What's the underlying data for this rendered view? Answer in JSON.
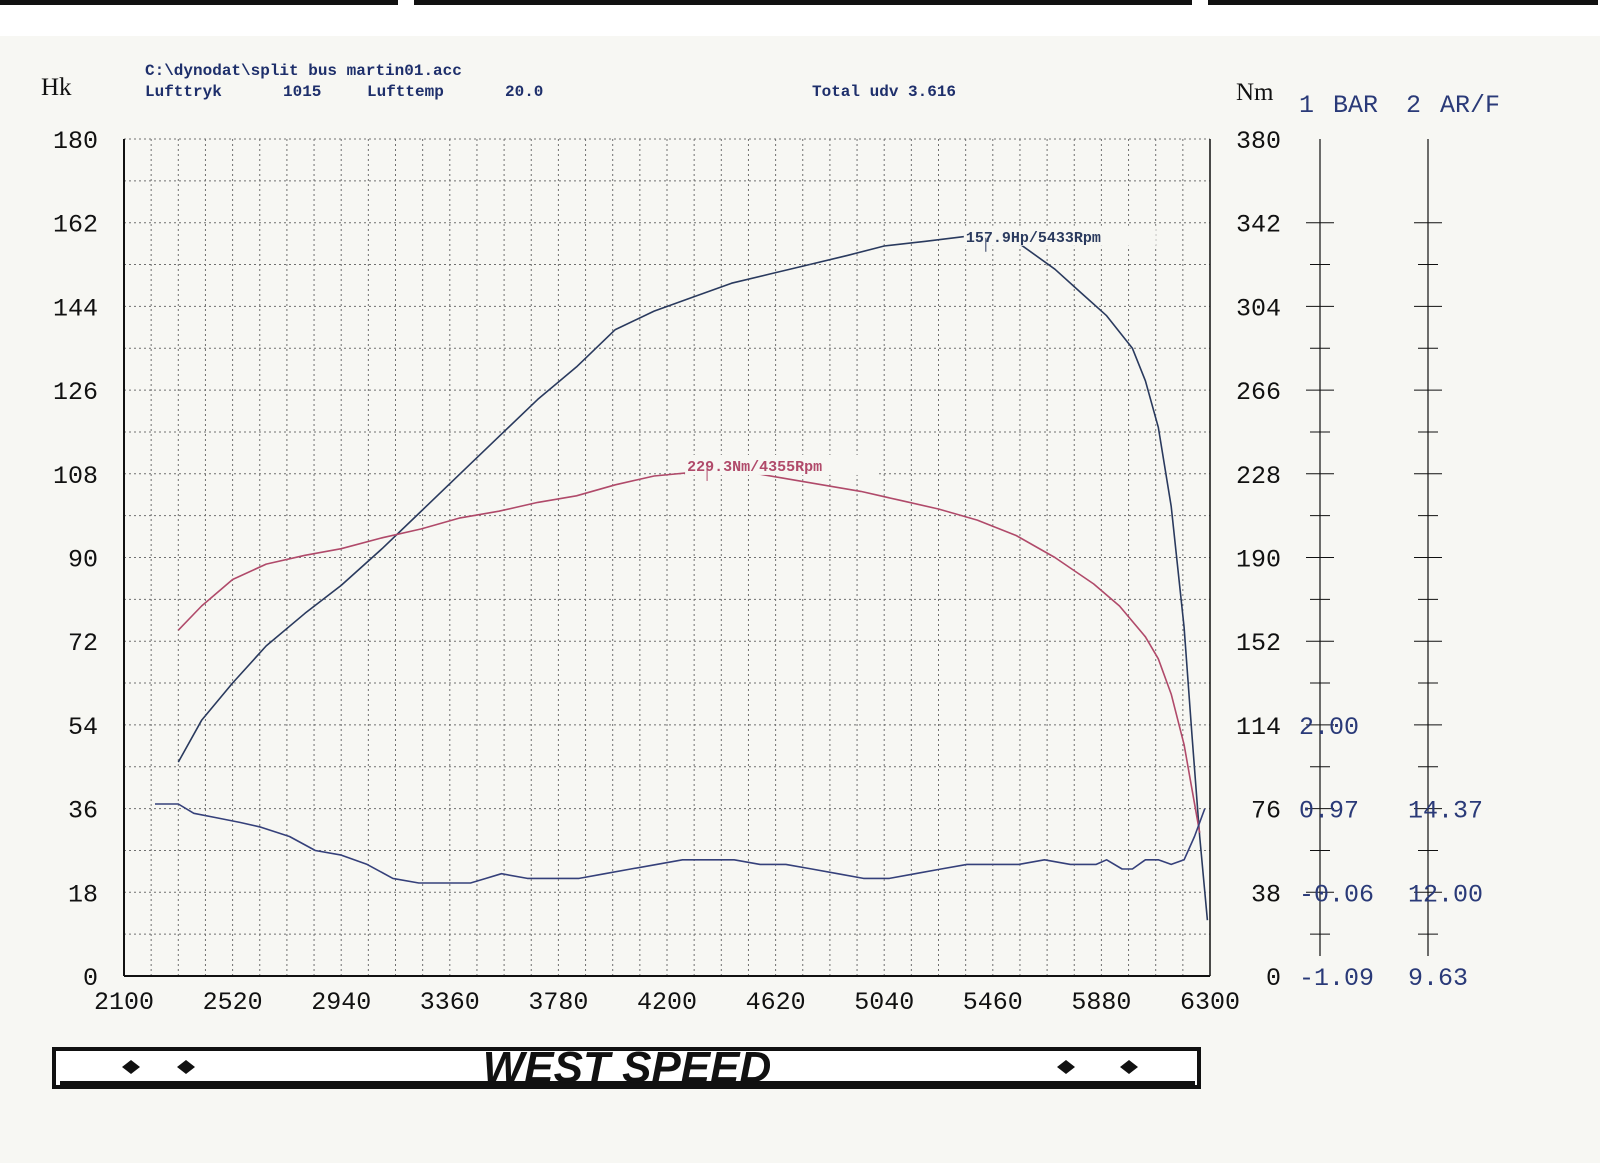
{
  "header": {
    "file_path": "C:\\dynodat\\split bus martin01.acc",
    "pressure_label": "Lufttryk",
    "pressure_value": "1015",
    "temp_label": "Lufttemp",
    "temp_value": "20.0",
    "total_label": "Total udv 3.616"
  },
  "logo": {
    "text": "WEST SPEED"
  },
  "colors": {
    "power": "#2a3a5e",
    "torque": "#b04a6a",
    "bar": "#35407a",
    "grid": "#707070",
    "text": "#111111"
  },
  "chart_data": {
    "type": "line",
    "xlim": [
      2100,
      6300
    ],
    "x_ticks": [
      2100,
      2520,
      2940,
      3360,
      3780,
      4200,
      4620,
      5040,
      5460,
      5880,
      6300
    ],
    "left_axis": {
      "label": "Hk",
      "ylim": [
        0,
        180
      ],
      "ticks": [
        0,
        18,
        36,
        54,
        72,
        90,
        108,
        126,
        144,
        162,
        180
      ]
    },
    "right_axis": {
      "label": "Nm",
      "ylim": [
        0,
        380
      ],
      "ticks": [
        0,
        38,
        76,
        114,
        152,
        190,
        228,
        266,
        304,
        342,
        380
      ]
    },
    "extra_scales": [
      {
        "number": "1",
        "label": "BAR",
        "ticks": [
          "-1.09",
          "-0.06",
          "0.97",
          "2.00"
        ]
      },
      {
        "number": "2",
        "label": "AR/F",
        "ticks": [
          "9.63",
          "12.00",
          "14.37"
        ]
      }
    ],
    "grid": true,
    "series": [
      {
        "axis": "left",
        "x": [
          2310,
          2400,
          2520,
          2650,
          2800,
          2940,
          3100,
          3250,
          3400,
          3550,
          3700,
          3850,
          4000,
          4150,
          4300,
          4450,
          4600,
          4750,
          4900,
          5040,
          5200,
          5350,
          5433,
          5550,
          5700,
          5800,
          5900,
          6000,
          6050,
          6100,
          6150,
          6200,
          6230,
          6260,
          6290
        ],
        "y": [
          46,
          55,
          63,
          71,
          78,
          84,
          92,
          100,
          108,
          116,
          124,
          131,
          139,
          143,
          146,
          149,
          151,
          153,
          155,
          157,
          158,
          159,
          157.9,
          158,
          152,
          147,
          142,
          135,
          128,
          118,
          101,
          75,
          52,
          30,
          12
        ]
      },
      {
        "axis": "right",
        "x": [
          2310,
          2400,
          2520,
          2650,
          2800,
          2940,
          3100,
          3250,
          3400,
          3550,
          3700,
          3850,
          4000,
          4150,
          4355,
          4500,
          4650,
          4800,
          4950,
          5100,
          5250,
          5400,
          5550,
          5700,
          5850,
          5950,
          6050,
          6100,
          6150,
          6200,
          6230,
          6260
        ],
        "y": [
          157,
          168,
          180,
          187,
          191,
          194,
          199,
          203,
          208,
          211,
          215,
          218,
          223,
          227,
          229.3,
          229,
          226,
          223,
          220,
          216,
          212,
          207,
          200,
          190,
          178,
          168,
          154,
          144,
          128,
          105,
          85,
          65
        ]
      },
      {
        "axis": "left",
        "x": [
          2220,
          2310,
          2370,
          2460,
          2550,
          2630,
          2740,
          2840,
          2940,
          3040,
          3140,
          3240,
          3340,
          3440,
          3500,
          3560,
          3660,
          3760,
          3860,
          3960,
          4060,
          4160,
          4260,
          4360,
          4460,
          4560,
          4660,
          4760,
          4860,
          4960,
          5060,
          5160,
          5260,
          5360,
          5460,
          5560,
          5660,
          5760,
          5860,
          5900,
          5960,
          6000,
          6050,
          6100,
          6150,
          6200,
          6240,
          6280
        ],
        "y": [
          37,
          37,
          35,
          34,
          33,
          32,
          30,
          27,
          26,
          24,
          21,
          20,
          20,
          20,
          21,
          22,
          21,
          21,
          21,
          22,
          23,
          24,
          25,
          25,
          25,
          24,
          24,
          23,
          22,
          21,
          21,
          22,
          23,
          24,
          24,
          24,
          25,
          24,
          24,
          25,
          23,
          23,
          25,
          25,
          24,
          25,
          30,
          36
        ]
      }
    ],
    "annotations": [
      {
        "text": "157.9Hp/5433Rpm",
        "x": 5433,
        "y": 157.9,
        "axis": "left"
      },
      {
        "text": "229.3Nm/4355Rpm",
        "x": 4355,
        "y": 229.3,
        "axis": "right"
      }
    ]
  }
}
